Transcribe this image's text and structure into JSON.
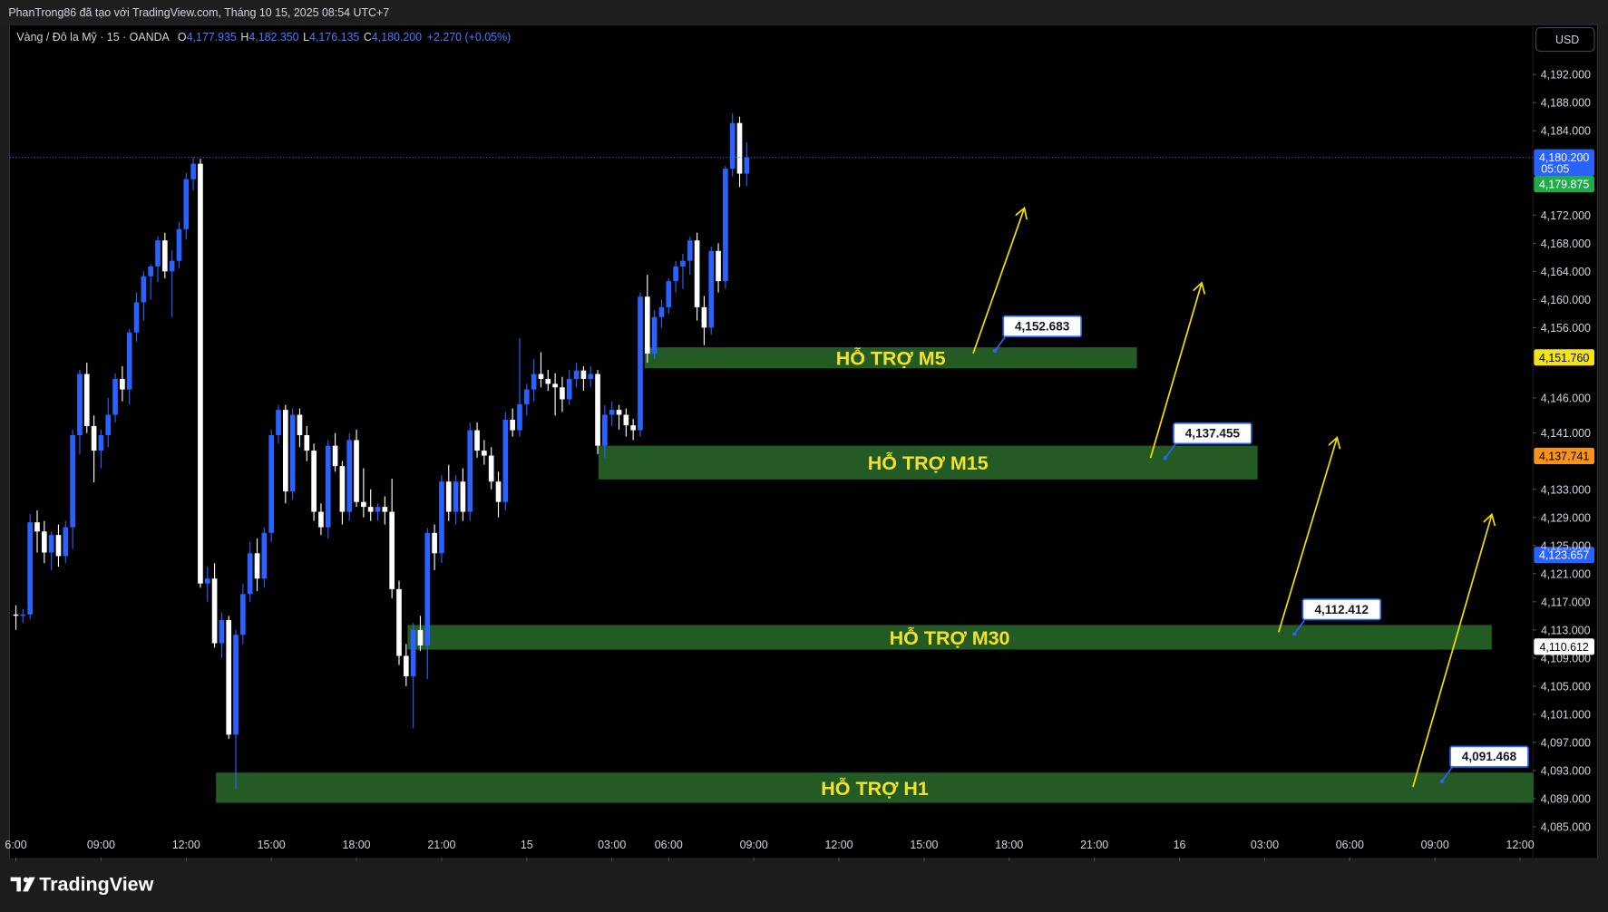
{
  "header": {
    "title": "PhanTrong86 đã tạo với TradingView.com, Tháng 10 15, 2025 08:54 UTC+7"
  },
  "legend": {
    "symbol": "Vàng / Đô la Mỹ · 15 · OANDA",
    "items": [
      {
        "key": "O",
        "value": "4,177.935"
      },
      {
        "key": "H",
        "value": "4,182.350"
      },
      {
        "key": "L",
        "value": "4,176.135"
      },
      {
        "key": "C",
        "value": "4,180.200"
      }
    ],
    "change": "+2.270 (+0.05%)"
  },
  "toolbar": {
    "currency": "USD"
  },
  "footer": {
    "logo_text": "TradingView"
  },
  "chart_data": {
    "type": "candlestick",
    "up_color": "#2962ff",
    "down_color": "#ffffff",
    "grid": false,
    "open": [
      4115.2,
      4115.0,
      4115.2,
      4128.3,
      4127.0,
      4124.0,
      4126.5,
      4123.5,
      4127.6,
      4140.7,
      4149.4,
      4142.0,
      4138.5,
      4140.7,
      4143.6,
      4148.7,
      4147.2,
      4155.3,
      4159.6,
      4163.3,
      4164.7,
      4168.4,
      4164.0,
      4165.5,
      4170.0,
      4177.1,
      4179.3,
      4119.6,
      4120.3,
      4111.1,
      4114.4,
      4098.1,
      4112.3,
      4118.1,
      4123.9,
      4120.3,
      4126.8,
      4140.7,
      4144.3,
      4132.7,
      4143.6,
      4140.7,
      4138.5,
      4129.8,
      4127.6,
      4139.2,
      4136.3,
      4129.8,
      4140.0,
      4131.2,
      4130.5,
      4129.8,
      4130.5,
      4129.8,
      4118.8,
      4109.3,
      4106.4,
      4113.0,
      4110.8,
      4126.8,
      4123.9,
      4134.1,
      4129.8,
      4134.1,
      4129.8,
      4141.4,
      4138.5,
      4137.8,
      4134.1,
      4131.2,
      4142.9,
      4141.4,
      4145.1,
      4147.2,
      4149.4,
      4148.7,
      4148.0,
      4147.5,
      4145.8,
      4148.7,
      4149.9,
      4148.7,
      4149.4,
      4139.2,
      4143.6,
      4144.3,
      4143.6,
      4142.1,
      4141.4,
      4160.4,
      4152.3,
      4157.5,
      4158.9,
      4162.6,
      4164.7,
      4165.5,
      4168.4,
      4158.9,
      4156.0,
      4166.9,
      4162.6,
      4178.6,
      4185.1,
      4177.9
    ],
    "high": [
      4116.5,
      4116.0,
      4129.5,
      4130.0,
      4128.5,
      4127.0,
      4128.0,
      4128.5,
      4141.5,
      4150.0,
      4151.0,
      4143.5,
      4141.5,
      4146.0,
      4149.5,
      4150.5,
      4155.8,
      4161.0,
      4164.0,
      4165.0,
      4169.0,
      4169.5,
      4167.0,
      4171.0,
      4178.0,
      4180.2,
      4180.0,
      4122.0,
      4122.5,
      4115.5,
      4115.0,
      4113.0,
      4119.5,
      4125.5,
      4126.0,
      4127.5,
      4141.5,
      4145.0,
      4145.0,
      4144.5,
      4144.5,
      4142.0,
      4139.5,
      4131.0,
      4140.0,
      4141.0,
      4137.0,
      4141.0,
      4141.5,
      4136.0,
      4133.0,
      4131.0,
      4132.0,
      4134.5,
      4120.0,
      4111.0,
      4114.0,
      4115.0,
      4127.5,
      4128.0,
      4135.0,
      4136.5,
      4135.0,
      4136.0,
      4142.5,
      4142.5,
      4140.0,
      4139.0,
      4135.5,
      4144.0,
      4144.5,
      4154.5,
      4148.0,
      4151.5,
      4152.5,
      4150.0,
      4149.5,
      4149.0,
      4150.0,
      4151.0,
      4150.5,
      4150.5,
      4150.0,
      4145.0,
      4145.5,
      4145.0,
      4144.5,
      4143.0,
      4161.0,
      4163.5,
      4158.5,
      4160.0,
      4163.0,
      4165.5,
      4166.5,
      4168.9,
      4169.5,
      4160.5,
      4167.5,
      4168.0,
      4179.0,
      4186.5,
      4186.0,
      4182.35
    ],
    "low": [
      4113.0,
      4114.0,
      4114.5,
      4124.0,
      4122.5,
      4121.5,
      4122.0,
      4122.5,
      4124.5,
      4138.0,
      4141.0,
      4134.0,
      4136.0,
      4139.0,
      4142.5,
      4145.5,
      4145.0,
      4154.0,
      4157.0,
      4160.0,
      4162.5,
      4163.0,
      4157.5,
      4164.5,
      4168.5,
      4175.5,
      4119.0,
      4117.0,
      4110.5,
      4109.0,
      4097.5,
      4090.4,
      4111.0,
      4117.0,
      4118.5,
      4119.0,
      4125.5,
      4139.5,
      4131.0,
      4131.5,
      4139.0,
      4137.0,
      4128.5,
      4126.5,
      4126.0,
      4135.5,
      4128.0,
      4128.5,
      4130.5,
      4129.0,
      4128.5,
      4128.5,
      4128.0,
      4117.5,
      4108.0,
      4105.0,
      4099.0,
      4110.0,
      4106.0,
      4121.5,
      4122.5,
      4128.5,
      4128.0,
      4128.5,
      4128.5,
      4137.5,
      4136.5,
      4133.0,
      4129.0,
      4130.0,
      4140.5,
      4140.5,
      4143.5,
      4145.5,
      4147.5,
      4147.0,
      4143.5,
      4144.0,
      4145.0,
      4147.5,
      4147.0,
      4147.5,
      4138.0,
      4137.5,
      4142.0,
      4141.5,
      4140.5,
      4140.0,
      4140.5,
      4151.0,
      4151.5,
      4156.0,
      4158.0,
      4161.0,
      4161.5,
      4163.5,
      4157.0,
      4153.5,
      4155.0,
      4161.0,
      4161.5,
      4177.5,
      4176.0,
      4176.135
    ],
    "close": [
      4115.0,
      4115.2,
      4128.3,
      4127.0,
      4124.0,
      4126.5,
      4123.5,
      4127.6,
      4140.7,
      4149.4,
      4142.0,
      4138.5,
      4140.7,
      4143.6,
      4148.7,
      4147.2,
      4155.3,
      4159.6,
      4163.3,
      4164.7,
      4168.4,
      4164.0,
      4165.5,
      4170.0,
      4177.1,
      4179.3,
      4119.6,
      4120.3,
      4111.1,
      4114.4,
      4098.1,
      4112.3,
      4118.1,
      4123.9,
      4120.3,
      4126.8,
      4140.7,
      4144.3,
      4132.7,
      4143.6,
      4140.7,
      4138.5,
      4129.8,
      4127.6,
      4139.2,
      4136.3,
      4129.8,
      4140.0,
      4131.2,
      4130.5,
      4129.8,
      4130.5,
      4129.8,
      4118.8,
      4109.3,
      4106.4,
      4113.0,
      4110.8,
      4126.8,
      4123.9,
      4134.1,
      4129.8,
      4134.1,
      4129.8,
      4141.4,
      4138.5,
      4137.8,
      4134.1,
      4131.2,
      4142.9,
      4141.4,
      4145.1,
      4147.2,
      4149.4,
      4148.7,
      4148.0,
      4147.5,
      4145.8,
      4148.7,
      4149.9,
      4148.7,
      4149.4,
      4139.2,
      4143.6,
      4144.3,
      4143.6,
      4142.1,
      4141.4,
      4160.4,
      4152.3,
      4157.5,
      4158.9,
      4162.6,
      4164.7,
      4165.5,
      4168.4,
      4158.9,
      4156.0,
      4166.9,
      4162.6,
      4178.6,
      4185.1,
      4177.9,
      4180.2
    ],
    "xlim": [
      -0.9,
      213.8
    ],
    "ylim": [
      4080.6,
      4199.1
    ],
    "xticks": [
      {
        "value": 0,
        "label": "6:00"
      },
      {
        "value": 12,
        "label": "09:00"
      },
      {
        "value": 24,
        "label": "12:00"
      },
      {
        "value": 36,
        "label": "15:00"
      },
      {
        "value": 48,
        "label": "18:00"
      },
      {
        "value": 60,
        "label": "21:00"
      },
      {
        "value": 72,
        "label": "15"
      },
      {
        "value": 84,
        "label": "03:00"
      },
      {
        "value": 92,
        "label": "06:00"
      },
      {
        "value": 104,
        "label": "09:00"
      },
      {
        "value": 116,
        "label": "12:00"
      },
      {
        "value": 128,
        "label": "15:00"
      },
      {
        "value": 140,
        "label": "18:00"
      },
      {
        "value": 152,
        "label": "21:00"
      },
      {
        "value": 164,
        "label": "16"
      },
      {
        "value": 176,
        "label": "03:00"
      },
      {
        "value": 188,
        "label": "06:00"
      },
      {
        "value": 200,
        "label": "09:00"
      },
      {
        "value": 212,
        "label": "12:00"
      }
    ],
    "yticks": [
      {
        "value": 4192,
        "label": "4,192.000"
      },
      {
        "value": 4188,
        "label": "4,188.000"
      },
      {
        "value": 4184,
        "label": "4,184.000"
      },
      {
        "value": 4172,
        "label": "4,172.000"
      },
      {
        "value": 4168,
        "label": "4,168.000"
      },
      {
        "value": 4164,
        "label": "4,164.000"
      },
      {
        "value": 4160,
        "label": "4,160.000"
      },
      {
        "value": 4156,
        "label": "4,156.000"
      },
      {
        "value": 4146,
        "label": "4,146.000"
      },
      {
        "value": 4141,
        "label": "4,141.000"
      },
      {
        "value": 4133,
        "label": "4,133.000"
      },
      {
        "value": 4129,
        "label": "4,129.000"
      },
      {
        "value": 4125,
        "label": "4,125.000"
      },
      {
        "value": 4121,
        "label": "4,121.000"
      },
      {
        "value": 4117,
        "label": "4,117.000"
      },
      {
        "value": 4113,
        "label": "4,113.000"
      },
      {
        "value": 4109,
        "label": "4,109.000"
      },
      {
        "value": 4105,
        "label": "4,105.000"
      },
      {
        "value": 4101,
        "label": "4,101.000"
      },
      {
        "value": 4097,
        "label": "4,097.000"
      },
      {
        "value": 4093,
        "label": "4,093.000"
      },
      {
        "value": 4089,
        "label": "4,089.000"
      },
      {
        "value": 4085,
        "label": "4,085.000"
      }
    ],
    "zones": [
      {
        "label": "HỖ TRỢ M5",
        "low": 4150.2,
        "high": 4153.2,
        "x": [
          88.6,
          158
        ],
        "color": "#245a24"
      },
      {
        "label": "HỖ TRỢ M15",
        "low": 4134.4,
        "high": 4139.2,
        "x": [
          82.1,
          175
        ],
        "color": "#245a24"
      },
      {
        "label": "HỖ TRỢ M30",
        "low": 4110.2,
        "high": 4113.7,
        "x": [
          55.2,
          208
        ],
        "color": "#245a24"
      },
      {
        "label": "HỖ TRỢ H1",
        "low": 4088.4,
        "high": 4092.7,
        "x": [
          28.2,
          213.9
        ],
        "color": "#245a24"
      }
    ],
    "annotations": [
      {
        "value": 4152.683,
        "label": "4,152.683",
        "x": 138
      },
      {
        "value": 4137.455,
        "label": "4,137.455",
        "x": 162
      },
      {
        "value": 4112.412,
        "label": "4,112.412",
        "x": 180.2
      },
      {
        "value": 4091.468,
        "label": "4,091.468",
        "x": 201
      }
    ],
    "price_labels": [
      {
        "value": 4180.2,
        "label": "4,180.200",
        "color": "#2962ff",
        "text_color": "#ffffff",
        "countdown": "05:05"
      },
      {
        "value": 4179.875,
        "label": "4,179.875",
        "color": "#22ab4a",
        "text_color": "#ffffff"
      },
      {
        "value": 4151.76,
        "label": "4,151.760",
        "color": "#f5e31a",
        "text_color": "#000000"
      },
      {
        "value": 4137.741,
        "label": "4,137.741",
        "color": "#f7931a",
        "text_color": "#000000"
      },
      {
        "value": 4123.657,
        "label": "4,123.657",
        "color": "#2962ff",
        "text_color": "#ffffff"
      },
      {
        "value": 4110.612,
        "label": "4,110.612",
        "color": "#ffffff",
        "text_color": "#000000"
      }
    ]
  }
}
